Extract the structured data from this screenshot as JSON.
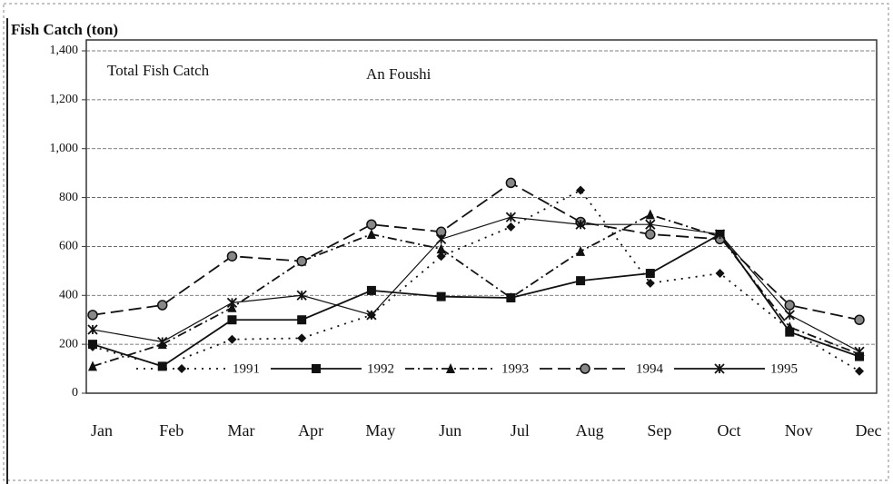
{
  "chart_data": {
    "type": "line",
    "title": "Fish Catch (ton)",
    "annotations": [
      "Total Fish Catch",
      "An Foushi"
    ],
    "categories": [
      "Jan",
      "Feb",
      "Mar",
      "Apr",
      "May",
      "Jun",
      "Jul",
      "Aug",
      "Sep",
      "Oct",
      "Nov",
      "Dec"
    ],
    "series": [
      {
        "name": "1991",
        "color": "#111111",
        "marker": "diamond",
        "dash": "2 6",
        "values": [
          190,
          110,
          220,
          225,
          320,
          560,
          680,
          830,
          450,
          490,
          260,
          90
        ]
      },
      {
        "name": "1992",
        "color": "#111111",
        "marker": "square",
        "dash": "none",
        "values": [
          200,
          110,
          300,
          300,
          420,
          395,
          390,
          460,
          490,
          650,
          250,
          150
        ]
      },
      {
        "name": "1993",
        "color": "#111111",
        "marker": "triangle",
        "dash": "10 4 2 4",
        "values": [
          110,
          200,
          350,
          540,
          650,
          590,
          390,
          580,
          730,
          640,
          270,
          160
        ]
      },
      {
        "name": "1994",
        "color": "#111111",
        "marker": "circle",
        "dash": "14 6",
        "values": [
          320,
          360,
          560,
          540,
          690,
          660,
          860,
          700,
          650,
          630,
          360,
          300
        ]
      },
      {
        "name": "1995",
        "color": "#111111",
        "marker": "asterisk",
        "dash": "none",
        "values": [
          260,
          210,
          370,
          400,
          320,
          630,
          720,
          690,
          690,
          650,
          320,
          170
        ]
      }
    ],
    "ylim": [
      0,
      1400
    ],
    "yticks": [
      0,
      200,
      400,
      600,
      800,
      {
        "value": 1000,
        "label": "1,000"
      },
      {
        "value": 1200,
        "label": "1,200"
      },
      {
        "value": 1400,
        "label": "1,400"
      }
    ],
    "grid": true,
    "legend": "bottom"
  }
}
